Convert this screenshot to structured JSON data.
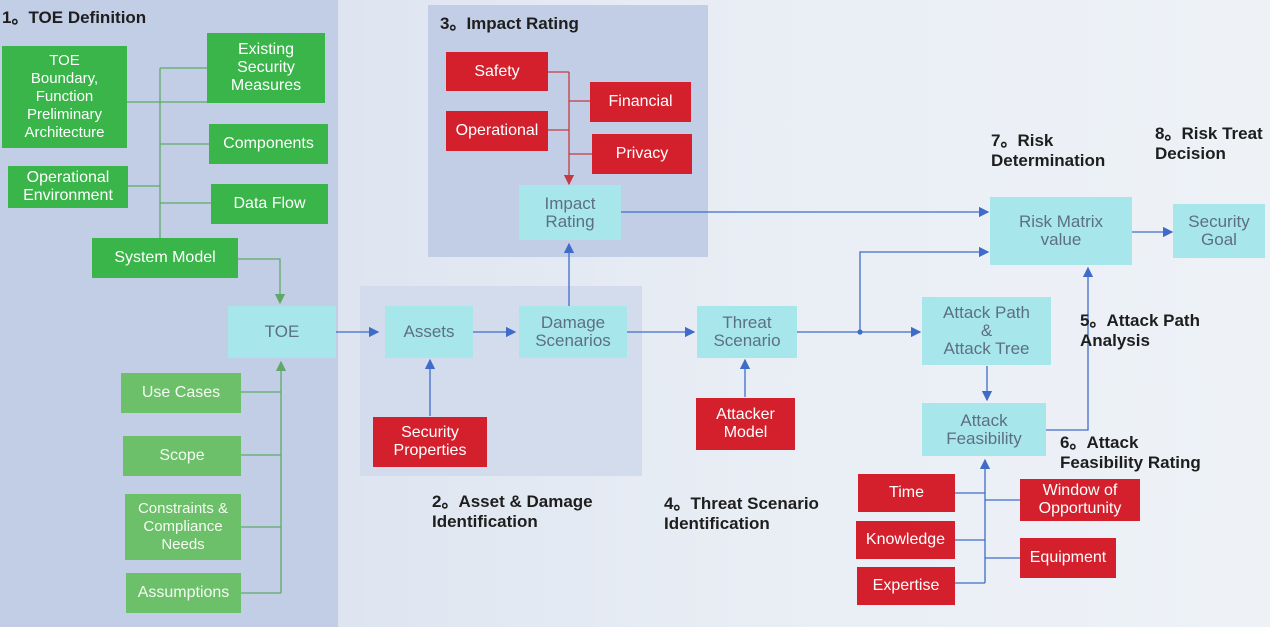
{
  "section_titles": {
    "toe_definition": "1。TOE Definition",
    "impact_rating": "3。Impact Rating",
    "asset_damage": "2。Asset & Damage\nIdentification",
    "threat_scenario": "4。Threat Scenario\nIdentification",
    "attack_path": "5。Attack Path\nAnalysis",
    "attack_feasibility": "6。Attack\nFeasibility Rating",
    "risk_determination": "7。Risk\nDetermination",
    "risk_treatment": "8。Risk Treat\nDecision"
  },
  "toe_inputs": {
    "toe_boundary": "TOE\nBoundary,\nFunction\nPreliminary\nArchitecture",
    "existing_security": "Existing\nSecurity\nMeasures",
    "components": "Components",
    "operational_environment": "Operational\nEnvironment",
    "data_flow": "Data Flow",
    "system_model": "System Model",
    "use_cases": "Use Cases",
    "scope": "Scope",
    "constraints": "Constraints &\nCompliance\nNeeds",
    "assumptions": "Assumptions"
  },
  "impact_categories": {
    "safety": "Safety",
    "financial": "Financial",
    "operational": "Operational",
    "privacy": "Privacy"
  },
  "process": {
    "toe": "TOE",
    "assets": "Assets",
    "security_properties": "Security\nProperties",
    "damage_scenarios": "Damage\nScenarios",
    "impact_rating": "Impact\nRating",
    "threat_scenario": "Threat\nScenario",
    "attacker_model": "Attacker\nModel",
    "attack_path_tree": "Attack Path\n&\nAttack Tree",
    "attack_feasibility": "Attack\nFeasibility",
    "risk_matrix": "Risk Matrix\nvalue",
    "security_goal": "Security\nGoal"
  },
  "feasibility_factors": {
    "time": "Time",
    "knowledge": "Knowledge",
    "expertise": "Expertise",
    "window_of_opportunity": "Window of\nOpportunity",
    "equipment": "Equipment"
  },
  "colors": {
    "input_green": "#39b54a",
    "impact_red": "#d4202d",
    "process_cyan": "#a7e7ec",
    "panel_blue": "#c2cee6",
    "connector_blue": "#3f6cc9",
    "connector_green": "#5fa86a",
    "connector_red": "#c23a42"
  }
}
